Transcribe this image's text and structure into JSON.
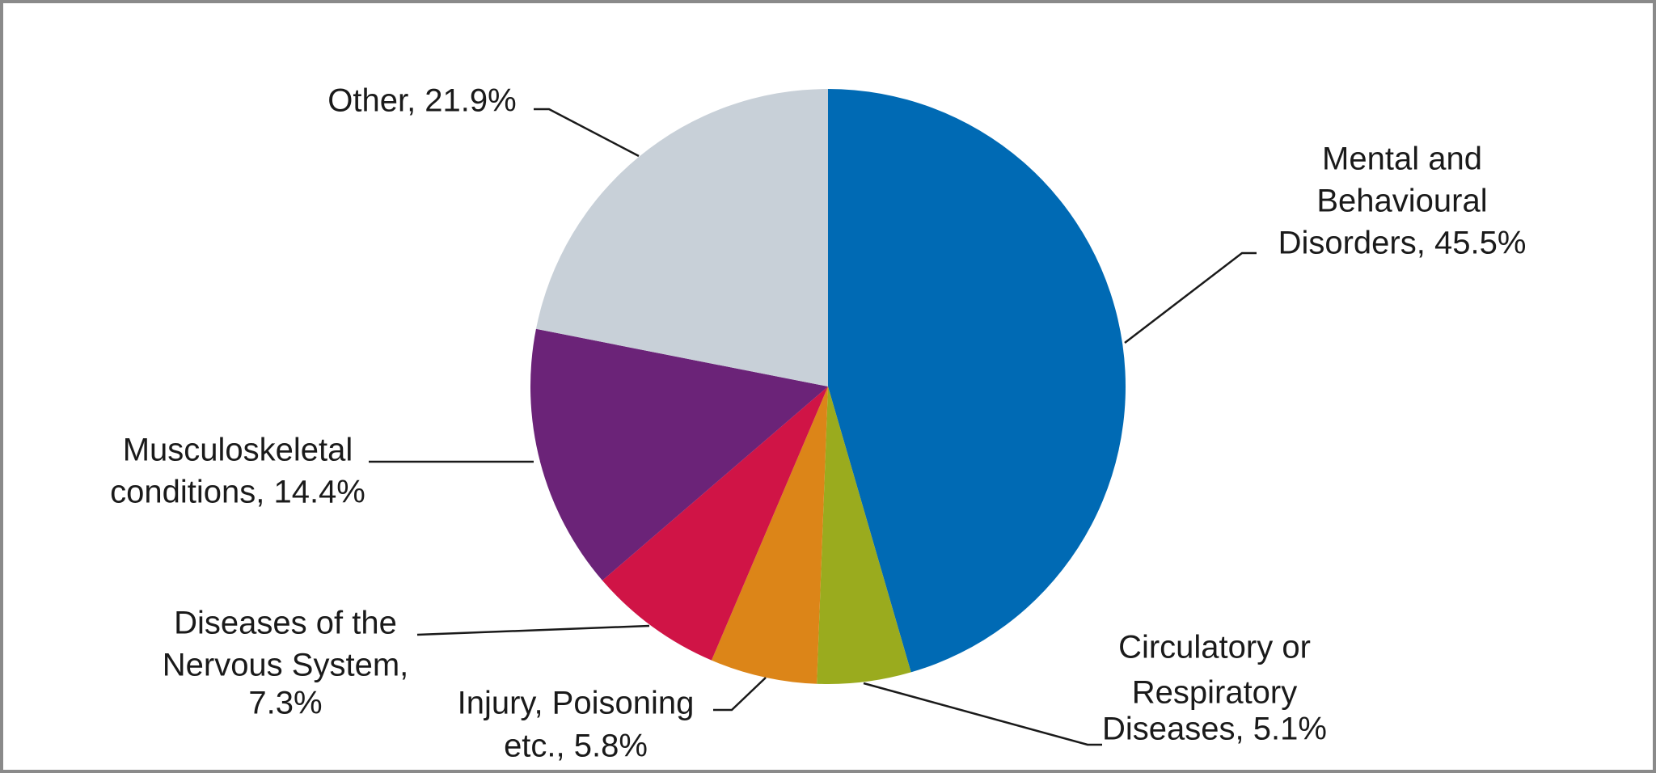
{
  "chart_data": {
    "type": "pie",
    "labels": [
      [
        "Mental and",
        "Behavioural",
        "Disorders, 45.5%"
      ],
      [
        "Circulatory or",
        "Respiratory",
        "Diseases, 5.1%"
      ],
      [
        "Injury, Poisoning",
        "etc., 5.8%"
      ],
      [
        "Diseases of the",
        "Nervous System,",
        "7.3%"
      ],
      [
        "Musculoskeletal",
        "conditions, 14.4%"
      ],
      [
        "Other, 21.9%"
      ]
    ],
    "values": [
      45.5,
      5.1,
      5.8,
      7.3,
      14.4,
      21.9
    ],
    "colors": [
      "#006ab4",
      "#9aab1e",
      "#dc8518",
      "#d01446",
      "#6b2378",
      "#c8d0d8"
    ]
  }
}
